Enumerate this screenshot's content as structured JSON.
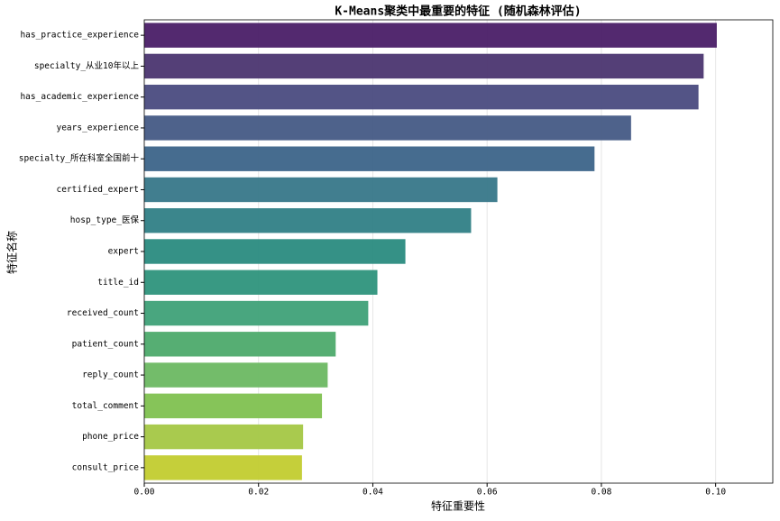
{
  "chart_data": {
    "type": "barh",
    "title": "K-Means聚类中最重要的特征 (随机森林评估)",
    "xlabel": "特征重要性",
    "ylabel": "特征名称",
    "categories": [
      "has_practice_experience",
      "specialty_从业10年以上",
      "has_academic_experience",
      "years_experience",
      "specialty_所在科室全国前十",
      "certified_expert",
      "hosp_type_医保",
      "expert",
      "title_id",
      "received_count",
      "patient_count",
      "reply_count",
      "total_comment",
      "phone_price",
      "consult_price"
    ],
    "values": [
      0.1002,
      0.0979,
      0.097,
      0.0852,
      0.0788,
      0.0618,
      0.0572,
      0.0457,
      0.0408,
      0.0392,
      0.0335,
      0.0321,
      0.0311,
      0.0278,
      0.0276
    ],
    "colors": [
      "#4a1d67",
      "#4b3570",
      "#4a4b80",
      "#455a85",
      "#3c6489",
      "#377789",
      "#307f86",
      "#2a8b80",
      "#2e937c",
      "#3fa178",
      "#4daa6c",
      "#6bb862",
      "#7fc150",
      "#a4c744",
      "#c2cc2f"
    ],
    "xlim": [
      0,
      0.11
    ],
    "xticks": [
      {
        "value": 0,
        "label": "0.00"
      },
      {
        "value": 0.02,
        "label": "0.02"
      },
      {
        "value": 0.04,
        "label": "0.04"
      },
      {
        "value": 0.06,
        "label": "0.06"
      },
      {
        "value": 0.08,
        "label": "0.08"
      },
      {
        "value": 0.1,
        "label": "0.10"
      }
    ],
    "grid": true
  }
}
